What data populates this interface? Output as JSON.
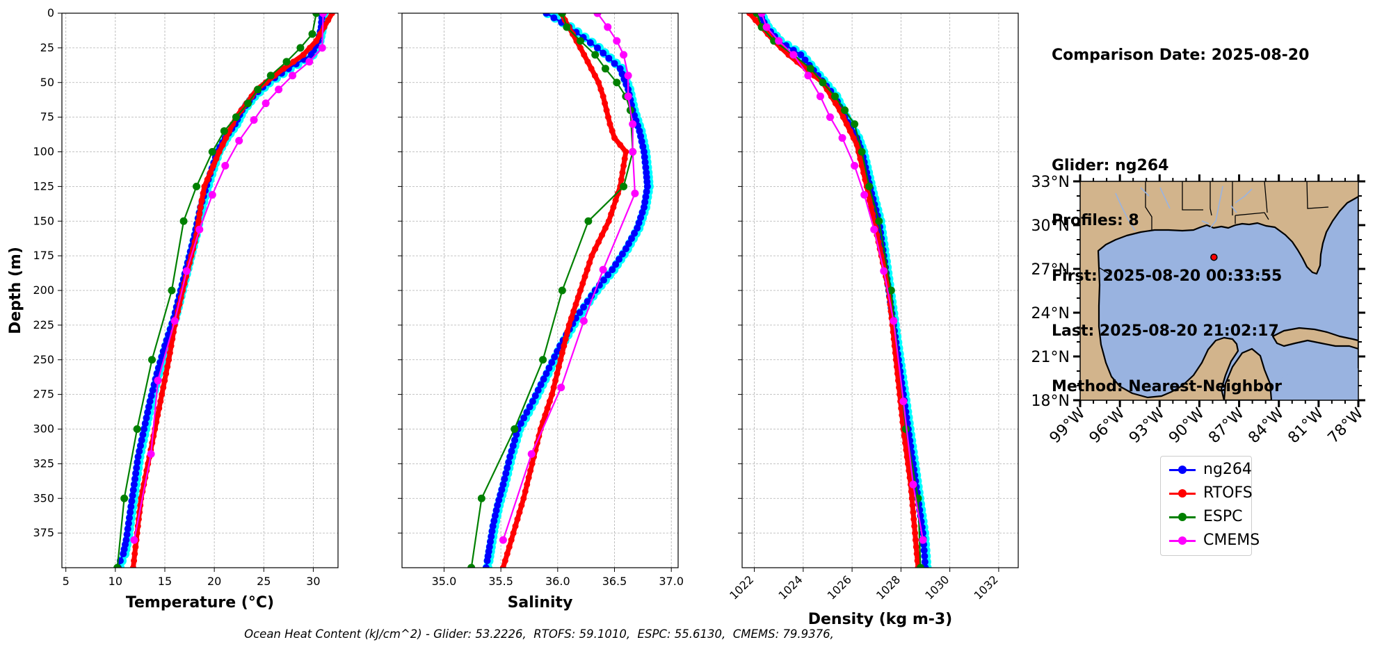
{
  "info": {
    "comparison_date": "Comparison Date: 2025-08-20",
    "glider": "Glider: ng264",
    "profiles": "Profiles: 8",
    "first": "First: 2025-08-20 00:33:55",
    "last": "Last: 2025-08-20 21:02:17",
    "method": "Method: Nearest-Neighbor"
  },
  "footer": "Ocean Heat Content (kJ/cm^2) - Glider: 53.2226,  RTOFS: 59.1010,  ESPC: 55.6130,  CMEMS: 79.9376,",
  "colors": {
    "glider": "#0000ff",
    "glider_spread": "#00ffff",
    "rtofs": "#ff0000",
    "espc": "#008000",
    "cmems": "#ff00ff",
    "land": "#d2b48c",
    "ocean": "#99b3e0"
  },
  "legend": [
    {
      "name": "ng264",
      "color": "#0000ff"
    },
    {
      "name": "RTOFS",
      "color": "#ff0000"
    },
    {
      "name": "ESPC",
      "color": "#008000"
    },
    {
      "name": "CMEMS",
      "color": "#ff00ff"
    }
  ],
  "map": {
    "lat_labels": [
      "33°N",
      "30°N",
      "27°N",
      "24°N",
      "21°N",
      "18°N"
    ],
    "lon_labels": [
      "99°W",
      "96°W",
      "93°W",
      "90°W",
      "87°W",
      "84°W",
      "81°W",
      "78°W"
    ],
    "lat_values": [
      33,
      30,
      27,
      24,
      21,
      18
    ],
    "lon_values": [
      -99,
      -96,
      -93,
      -90,
      -87,
      -84,
      -81,
      -78
    ],
    "extent": {
      "lon": [
        -99,
        -78
      ],
      "lat": [
        18,
        33
      ]
    },
    "glider_position": {
      "lon": -88.9,
      "lat": 27.8
    }
  },
  "chart_data": [
    {
      "type": "line",
      "title": "",
      "xlabel": "Temperature (°C)",
      "ylabel": "Depth (m)",
      "xlim": [
        4.6,
        32.5
      ],
      "ylim": [
        400,
        0
      ],
      "xticks": [
        5,
        10,
        15,
        20,
        25,
        30
      ],
      "yticks": [
        0,
        25,
        50,
        75,
        100,
        125,
        150,
        175,
        200,
        225,
        250,
        275,
        300,
        325,
        350,
        375
      ],
      "grid": true,
      "series": [
        {
          "name": "ng264",
          "style": "glider",
          "x": [
            30.9,
            30.8,
            30.5,
            29.8,
            27.5,
            25.4,
            23.9,
            22.8,
            22.1,
            21.1,
            20.3,
            19.4,
            18.6,
            18.0,
            17.3,
            16.6,
            15.9,
            15.0,
            14.2,
            13.5,
            12.9,
            12.3,
            11.9,
            11.5,
            11.1,
            10.8,
            10.5,
            10.3
          ],
          "y": [
            0,
            10,
            20,
            30,
            40,
            50,
            60,
            70,
            80,
            90,
            100,
            120,
            140,
            160,
            180,
            200,
            220,
            240,
            260,
            280,
            300,
            320,
            340,
            360,
            380,
            390,
            395,
            400
          ]
        },
        {
          "name": "RTOFS",
          "style": "thick",
          "x": [
            31.9,
            30.3,
            29.0,
            27.0,
            24.3,
            22.2,
            20.5,
            19.0,
            18.6,
            18.2,
            17.5,
            16.8,
            16.0,
            15.4,
            14.7,
            14.0,
            13.3,
            12.6,
            11.8
          ],
          "y": [
            0,
            20,
            30,
            40,
            55,
            75,
            100,
            125,
            140,
            160,
            180,
            200,
            225,
            250,
            275,
            300,
            325,
            350,
            400
          ]
        },
        {
          "name": "ESPC",
          "x": [
            30.3,
            29.9,
            28.7,
            27.3,
            25.7,
            24.4,
            23.4,
            22.2,
            21.0,
            19.8,
            18.2,
            16.9,
            15.7,
            13.7,
            12.2,
            10.9,
            10.2
          ],
          "y": [
            0,
            15,
            25,
            35,
            45,
            55,
            65,
            75,
            85,
            100,
            125,
            150,
            200,
            250,
            300,
            350,
            400
          ]
        },
        {
          "name": "CMEMS",
          "x": [
            31.0,
            30.9,
            29.6,
            27.9,
            26.5,
            25.2,
            24.0,
            22.5,
            21.1,
            19.8,
            18.5,
            17.2,
            16.0,
            14.3,
            13.6,
            11.9
          ],
          "y": [
            0,
            25,
            35,
            45,
            55,
            65,
            77,
            92,
            110,
            131,
            156,
            186,
            222,
            265,
            318,
            380
          ]
        }
      ]
    },
    {
      "type": "line",
      "title": "",
      "xlabel": "Salinity",
      "ylabel": "",
      "xlim": [
        34.63,
        37.06
      ],
      "ylim": [
        400,
        0
      ],
      "xticks": [
        35.0,
        35.5,
        36.0,
        36.5,
        37.0
      ],
      "grid": true,
      "series": [
        {
          "name": "ng264",
          "style": "glider",
          "x": [
            35.9,
            36.1,
            36.35,
            36.55,
            36.62,
            36.66,
            36.72,
            36.76,
            36.78,
            36.79,
            36.76,
            36.7,
            36.6,
            36.48,
            36.33,
            36.16,
            36.02,
            35.9,
            35.78,
            35.65,
            35.58,
            35.52,
            35.47,
            35.43,
            35.4,
            35.38,
            35.37
          ],
          "y": [
            0,
            10,
            25,
            40,
            55,
            70,
            85,
            100,
            115,
            125,
            140,
            155,
            170,
            185,
            200,
            220,
            240,
            260,
            280,
            300,
            320,
            340,
            355,
            370,
            385,
            395,
            400
          ]
        },
        {
          "name": "RTOFS",
          "style": "thick",
          "x": [
            36.03,
            36.2,
            36.36,
            36.4,
            36.43,
            36.46,
            36.5,
            36.6,
            36.55,
            36.45,
            36.3,
            36.1,
            35.95,
            35.85,
            35.7,
            35.52
          ],
          "y": [
            0,
            25,
            50,
            60,
            70,
            80,
            90,
            100,
            125,
            150,
            175,
            225,
            275,
            300,
            350,
            400
          ]
        },
        {
          "name": "ESPC",
          "x": [
            36.04,
            36.08,
            36.2,
            36.33,
            36.42,
            36.52,
            36.6,
            36.64,
            36.66,
            36.58,
            36.27,
            36.04,
            35.87,
            35.62,
            35.33,
            35.24
          ],
          "y": [
            0,
            10,
            20,
            30,
            40,
            50,
            60,
            70,
            100,
            125,
            150,
            200,
            250,
            300,
            350,
            400
          ]
        },
        {
          "name": "CMEMS",
          "x": [
            36.35,
            36.44,
            36.52,
            36.58,
            36.62,
            36.62,
            36.66,
            36.66,
            36.68,
            36.4,
            36.23,
            36.03,
            35.77,
            35.52
          ],
          "y": [
            0,
            10,
            20,
            30,
            45,
            60,
            80,
            100,
            130,
            185,
            222,
            270,
            318,
            380
          ]
        }
      ]
    },
    {
      "type": "line",
      "title": "",
      "xlabel": "Density (kg m-3)",
      "ylabel": "",
      "xlim": [
        1021.5,
        1032.8
      ],
      "ylim": [
        400,
        0
      ],
      "xticks": [
        1022,
        1024,
        1026,
        1028,
        1030,
        1032
      ],
      "grid": true,
      "series": [
        {
          "name": "ng264",
          "style": "glider",
          "x": [
            1022.2,
            1022.5,
            1023.0,
            1023.9,
            1024.6,
            1025.3,
            1025.7,
            1026.2,
            1026.4,
            1026.6,
            1026.8,
            1027.1,
            1027.3,
            1027.5,
            1027.7,
            1027.9,
            1028.1,
            1028.3,
            1028.5,
            1028.7,
            1028.9,
            1029.0
          ],
          "y": [
            0,
            10,
            20,
            30,
            45,
            60,
            75,
            90,
            100,
            115,
            130,
            150,
            175,
            200,
            225,
            250,
            275,
            300,
            325,
            350,
            375,
            400
          ]
        },
        {
          "name": "RTOFS",
          "style": "thick",
          "x": [
            1021.8,
            1022.3,
            1022.8,
            1023.4,
            1024.1,
            1024.8,
            1025.5,
            1026.2,
            1026.6,
            1026.9,
            1027.2,
            1027.5,
            1027.8,
            1028.1,
            1028.4,
            1028.6,
            1028.7
          ],
          "y": [
            0,
            10,
            20,
            30,
            40,
            50,
            70,
            95,
            125,
            150,
            175,
            200,
            250,
            300,
            340,
            380,
            400
          ]
        },
        {
          "name": "ESPC",
          "x": [
            1022.1,
            1022.3,
            1022.8,
            1023.6,
            1024.3,
            1024.8,
            1025.3,
            1025.7,
            1026.1,
            1026.4,
            1026.7,
            1027.1,
            1027.6,
            1028.2,
            1028.7,
            1028.8
          ],
          "y": [
            0,
            10,
            20,
            30,
            40,
            50,
            60,
            70,
            80,
            100,
            125,
            150,
            200,
            300,
            350,
            400
          ]
        },
        {
          "name": "CMEMS",
          "x": [
            1022.3,
            1022.5,
            1023.0,
            1023.6,
            1024.2,
            1024.7,
            1025.1,
            1025.6,
            1026.1,
            1026.5,
            1026.9,
            1027.3,
            1027.7,
            1028.1,
            1028.5,
            1028.9
          ],
          "y": [
            0,
            10,
            20,
            30,
            45,
            60,
            75,
            90,
            110,
            131,
            156,
            186,
            222,
            280,
            340,
            380
          ]
        }
      ]
    }
  ]
}
